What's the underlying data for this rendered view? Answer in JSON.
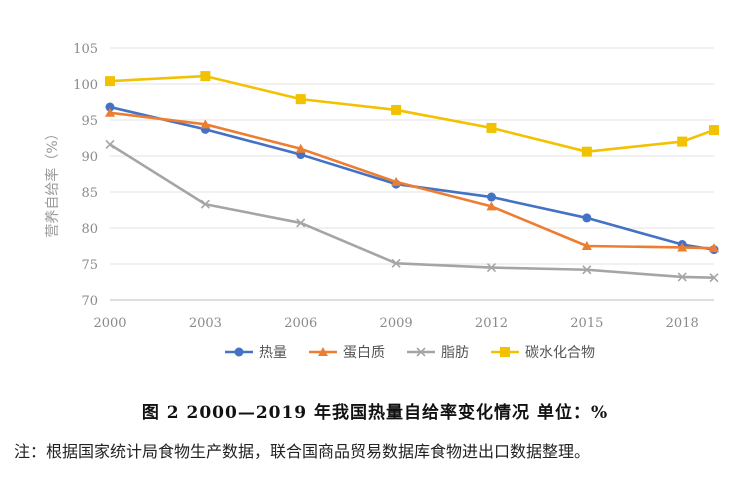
{
  "chart_data": {
    "type": "line",
    "ylabel": "营养自给率（%）",
    "x_ticks": [
      "2000",
      "2003",
      "2006",
      "2009",
      "2012",
      "2015",
      "2018"
    ],
    "x_range": [
      2000,
      2019
    ],
    "y_ticks": [
      "70",
      "75",
      "80",
      "85",
      "90",
      "95",
      "100",
      "105"
    ],
    "ylim": [
      70,
      105
    ],
    "grid": true,
    "legend_position": "bottom",
    "series": [
      {
        "name": "热量",
        "color": "#4472c4",
        "marker": "circle",
        "x": [
          2000,
          2003,
          2006,
          2009,
          2012,
          2015,
          2018,
          2019
        ],
        "values": [
          96.8,
          93.7,
          90.2,
          86.1,
          84.3,
          81.4,
          77.7,
          77.0
        ]
      },
      {
        "name": "蛋白质",
        "color": "#ed7d31",
        "marker": "triangle",
        "x": [
          2000,
          2003,
          2006,
          2009,
          2012,
          2015,
          2018,
          2019
        ],
        "values": [
          96.0,
          94.4,
          91.0,
          86.4,
          83.0,
          77.5,
          77.3,
          77.2
        ]
      },
      {
        "name": "脂肪",
        "color": "#a5a5a5",
        "marker": "x",
        "x": [
          2000,
          2003,
          2006,
          2009,
          2012,
          2015,
          2018,
          2019
        ],
        "values": [
          91.6,
          83.3,
          80.7,
          75.1,
          74.5,
          74.2,
          73.2,
          73.1
        ]
      },
      {
        "name": "碳水化合物",
        "color": "#f2c200",
        "marker": "square",
        "x": [
          2000,
          2003,
          2006,
          2009,
          2012,
          2015,
          2018,
          2019
        ],
        "values": [
          100.4,
          101.1,
          97.9,
          96.4,
          93.9,
          90.6,
          92.0,
          93.6
        ]
      }
    ]
  },
  "caption": "图 2 2000—2019 年我国热量自给率变化情况 单位：%",
  "note": "注：根据国家统计局食物生产数据，联合国商品贸易数据库食物进出口数据整理。"
}
